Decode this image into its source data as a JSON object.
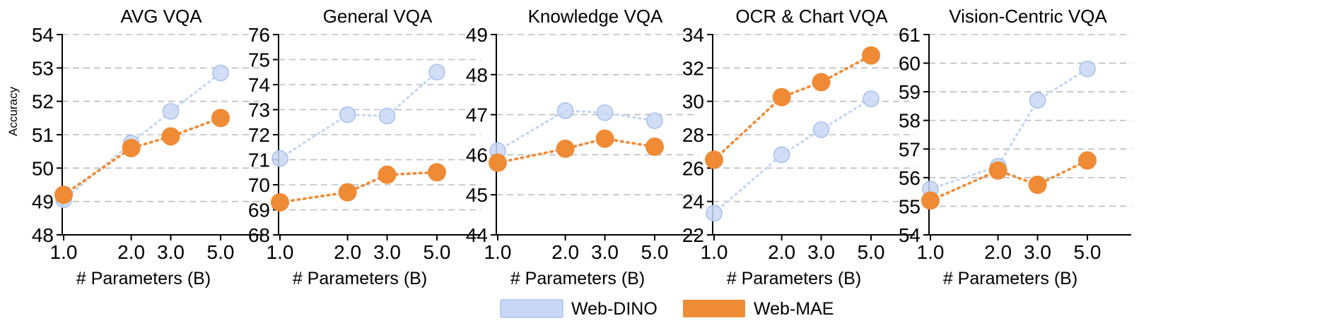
{
  "colors": {
    "web_dino_fill": "#c9d8f5",
    "web_dino_edge": "#a9c2ee",
    "web_dino_line": "#c4d5f3",
    "web_mae_fill": "#ef8a35",
    "web_mae_line": "#ef8a35",
    "grid": "#bdbdbd"
  },
  "legend": {
    "items": [
      {
        "name": "Web-DINO",
        "color": "#c9d8f5"
      },
      {
        "name": "Web-MAE",
        "color": "#ef8a35"
      }
    ]
  },
  "chart_data": [
    {
      "type": "line",
      "title": "AVG VQA",
      "ylabel": "Accuracy",
      "xlabel": "# Parameters (B)",
      "x": [
        1.0,
        2.0,
        3.0,
        5.0
      ],
      "xticks": [
        "1.0",
        "2.0",
        "3.0",
        "5.0"
      ],
      "xscale": "log",
      "ylim": [
        48,
        54
      ],
      "yticks": [
        "48",
        "49",
        "50",
        "51",
        "52",
        "53",
        "54"
      ],
      "yticks_values": [
        48,
        49,
        50,
        51,
        52,
        53,
        54
      ],
      "series": [
        {
          "name": "Web-DINO",
          "values": [
            49.05,
            50.75,
            51.7,
            52.85
          ]
        },
        {
          "name": "Web-MAE",
          "values": [
            49.2,
            50.6,
            50.95,
            51.5
          ]
        }
      ]
    },
    {
      "type": "line",
      "title": "General VQA",
      "ylabel": "",
      "xlabel": "# Parameters (B)",
      "x": [
        1.0,
        2.0,
        3.0,
        5.0
      ],
      "xticks": [
        "1.0",
        "2.0",
        "3.0",
        "5.0"
      ],
      "xscale": "log",
      "ylim": [
        68,
        76
      ],
      "yticks": [
        "68",
        "69",
        "70",
        "71",
        "72",
        "73",
        "74",
        "75",
        "76"
      ],
      "yticks_values": [
        68,
        69,
        70,
        71,
        72,
        73,
        74,
        75,
        76
      ],
      "series": [
        {
          "name": "Web-DINO",
          "values": [
            71.05,
            72.8,
            72.75,
            74.5
          ]
        },
        {
          "name": "Web-MAE",
          "values": [
            69.3,
            69.7,
            70.4,
            70.5
          ]
        }
      ]
    },
    {
      "type": "line",
      "title": "Knowledge VQA",
      "ylabel": "",
      "xlabel": "# Parameters (B)",
      "x": [
        1.0,
        2.0,
        3.0,
        5.0
      ],
      "xticks": [
        "1.0",
        "2.0",
        "3.0",
        "5.0"
      ],
      "xscale": "log",
      "ylim": [
        44,
        49
      ],
      "yticks": [
        "44",
        "45",
        "46",
        "47",
        "48",
        "49"
      ],
      "yticks_values": [
        44,
        45,
        46,
        47,
        48,
        49
      ],
      "series": [
        {
          "name": "Web-DINO",
          "values": [
            46.1,
            47.1,
            47.05,
            46.85
          ]
        },
        {
          "name": "Web-MAE",
          "values": [
            45.8,
            46.15,
            46.4,
            46.2
          ]
        }
      ]
    },
    {
      "type": "line",
      "title": "OCR & Chart VQA",
      "ylabel": "",
      "xlabel": "# Parameters (B)",
      "x": [
        1.0,
        2.0,
        3.0,
        5.0
      ],
      "xticks": [
        "1.0",
        "2.0",
        "3.0",
        "5.0"
      ],
      "xscale": "log",
      "ylim": [
        22,
        34
      ],
      "yticks": [
        "22",
        "24",
        "26",
        "28",
        "30",
        "32",
        "34"
      ],
      "yticks_values": [
        22,
        24,
        26,
        28,
        30,
        32,
        34
      ],
      "series": [
        {
          "name": "Web-DINO",
          "values": [
            23.3,
            26.8,
            28.3,
            30.15
          ]
        },
        {
          "name": "Web-MAE",
          "values": [
            26.5,
            30.25,
            31.15,
            32.75
          ]
        }
      ]
    },
    {
      "type": "line",
      "title": "Vision-Centric VQA",
      "ylabel": "",
      "xlabel": "# Parameters (B)",
      "x": [
        1.0,
        2.0,
        3.0,
        5.0
      ],
      "xticks": [
        "1.0",
        "2.0",
        "3.0",
        "5.0"
      ],
      "xscale": "log",
      "ylim": [
        54,
        61
      ],
      "yticks": [
        "54",
        "55",
        "56",
        "57",
        "58",
        "59",
        "60",
        "61"
      ],
      "yticks_values": [
        54,
        55,
        56,
        57,
        58,
        59,
        60,
        61
      ],
      "series": [
        {
          "name": "Web-DINO",
          "values": [
            55.6,
            56.4,
            58.7,
            59.8
          ]
        },
        {
          "name": "Web-MAE",
          "values": [
            55.2,
            56.25,
            55.75,
            56.6
          ]
        }
      ]
    }
  ]
}
